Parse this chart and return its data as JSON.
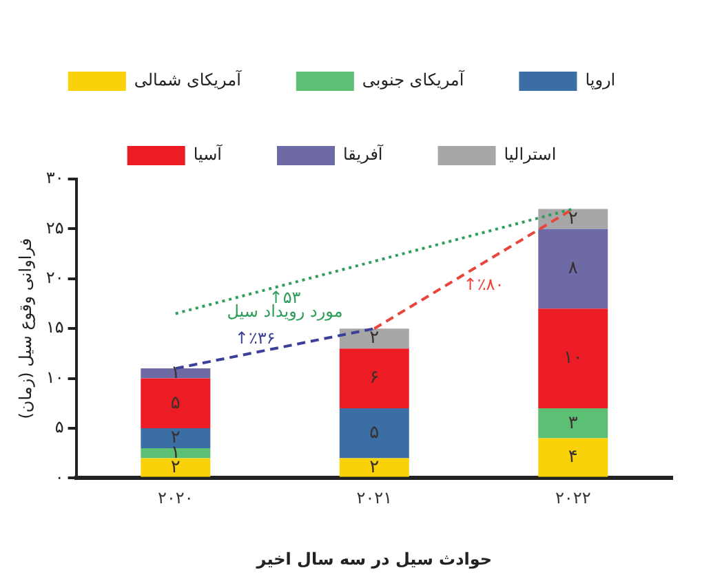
{
  "chart_data": {
    "type": "bar",
    "stacked": true,
    "xlabel": "حوادث سیل در سه سال اخیر",
    "ylabel": "فراوانی وقوع سیل (زمان)",
    "categories": [
      "۲۰۲۰",
      "۲۰۲۱",
      "۲۰۲۲"
    ],
    "series": [
      {
        "name": "آمریکای شمالی",
        "color": "#f9d20a",
        "values": [
          2,
          2,
          4
        ],
        "value_labels": [
          "۲",
          "۲",
          "۴"
        ]
      },
      {
        "name": "آمریکای جنوبی",
        "color": "#5cbf74",
        "values": [
          1,
          0,
          3
        ],
        "value_labels": [
          "۱",
          null,
          "۳"
        ]
      },
      {
        "name": "اروپا",
        "color": "#3a6ea5",
        "values": [
          2,
          5,
          0
        ],
        "value_labels": [
          "۲",
          "۵",
          null
        ]
      },
      {
        "name": "آسیا",
        "color": "#ec1c24",
        "values": [
          5,
          6,
          10
        ],
        "value_labels": [
          "۵",
          "۶",
          "۱۰"
        ]
      },
      {
        "name": "آفریقا",
        "color": "#6e6aa6",
        "values": [
          1,
          0,
          8
        ],
        "value_labels": [
          "۱",
          null,
          "۸"
        ]
      },
      {
        "name": "استرالیا",
        "color": "#a7a7a7",
        "values": [
          0,
          2,
          2
        ],
        "value_labels": [
          null,
          "۲",
          "۲"
        ]
      },
      {
        "type": "line",
        "color": "#2e9e5a",
        "line_style": "dotted",
        "values": [
          16.5,
          null,
          27
        ]
      },
      {
        "type": "line",
        "color": "#3b3f9a",
        "line_style": "dashed",
        "values": [
          11,
          15,
          null
        ]
      },
      {
        "type": "line",
        "color": "#e8453c",
        "line_style": "dashed",
        "values": [
          null,
          15,
          27
        ]
      }
    ],
    "annotations": [
      "↑۵۳",
      "مورد رویداد سیل",
      "↑٪۳۶",
      "↑٪۸۰"
    ],
    "ylim": [
      0,
      30
    ],
    "yticks": [
      {
        "value": 0,
        "label": "۰"
      },
      {
        "value": 5,
        "label": "۵"
      },
      {
        "value": 10,
        "label": "۱۰"
      },
      {
        "value": 15,
        "label": "۱۵"
      },
      {
        "value": 20,
        "label": "۲۰"
      },
      {
        "value": 25,
        "label": "۲۵"
      },
      {
        "value": 30,
        "label": "۳۰"
      }
    ],
    "grid": false,
    "legend": "top",
    "marker": "none"
  }
}
